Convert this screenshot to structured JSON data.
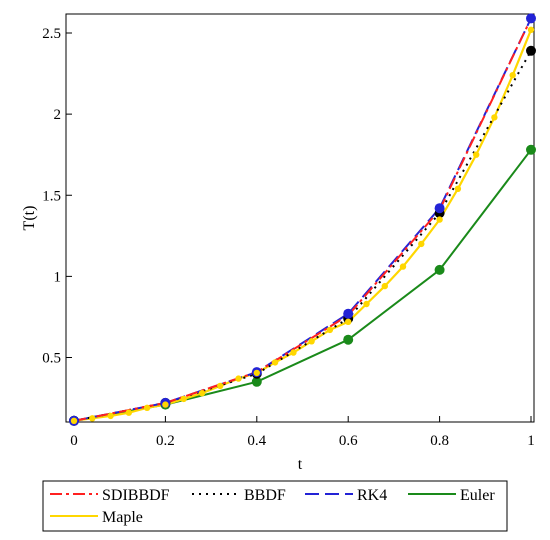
{
  "chart_data": {
    "type": "line",
    "title": "",
    "xlabel": "t",
    "ylabel": "T(t)",
    "xlim": [
      0,
      1
    ],
    "ylim": [
      0.1,
      2.6
    ],
    "xticks": [
      0,
      0.2,
      0.4,
      0.6,
      0.8,
      1
    ],
    "xtick_labels": [
      "0",
      "0.2",
      "0.4",
      "0.6",
      "0.8",
      "1"
    ],
    "yticks": [
      0.5,
      1,
      1.5,
      2,
      2.5
    ],
    "ytick_labels": [
      "0.5",
      "1",
      "1.5",
      "2",
      "2.5"
    ],
    "grid": false,
    "legend_position": "bottom",
    "series": [
      {
        "name": "SDIBBDF",
        "color": "#ff2020",
        "dash": "dashdot",
        "x": [
          0,
          0.2,
          0.4,
          0.6,
          0.8,
          1
        ],
        "y": [
          0.11,
          0.22,
          0.41,
          0.76,
          1.41,
          2.59
        ]
      },
      {
        "name": "BBDF",
        "color": "#000000",
        "dash": "dotted",
        "markers": true,
        "x": [
          0,
          0.2,
          0.4,
          0.6,
          0.8,
          1
        ],
        "y": [
          0.11,
          0.22,
          0.4,
          0.74,
          1.39,
          2.39
        ]
      },
      {
        "name": "RK4",
        "color": "#2323d6",
        "dash": "longdash",
        "markers": true,
        "x": [
          0,
          0.2,
          0.4,
          0.6,
          0.8,
          1
        ],
        "y": [
          0.11,
          0.22,
          0.41,
          0.77,
          1.42,
          2.59
        ]
      },
      {
        "name": "Euler",
        "color": "#1a8a1a",
        "dash": "solid",
        "markers": true,
        "x": [
          0,
          0.2,
          0.4,
          0.6,
          0.8,
          1
        ],
        "y": [
          0.11,
          0.21,
          0.35,
          0.61,
          1.04,
          1.78
        ]
      },
      {
        "name": "Maple",
        "color": "#ffd700",
        "dash": "solid",
        "markers": true,
        "x": [
          0,
          0.04,
          0.08,
          0.12,
          0.16,
          0.2,
          0.24,
          0.28,
          0.32,
          0.36,
          0.4,
          0.44,
          0.48,
          0.52,
          0.56,
          0.6,
          0.64,
          0.68,
          0.72,
          0.76,
          0.8,
          0.84,
          0.88,
          0.92,
          0.96,
          1
        ],
        "y": [
          0.11,
          0.125,
          0.14,
          0.16,
          0.19,
          0.21,
          0.245,
          0.28,
          0.325,
          0.37,
          0.405,
          0.47,
          0.53,
          0.6,
          0.67,
          0.72,
          0.83,
          0.94,
          1.06,
          1.2,
          1.35,
          1.54,
          1.75,
          1.98,
          2.24,
          2.52
        ]
      }
    ]
  }
}
